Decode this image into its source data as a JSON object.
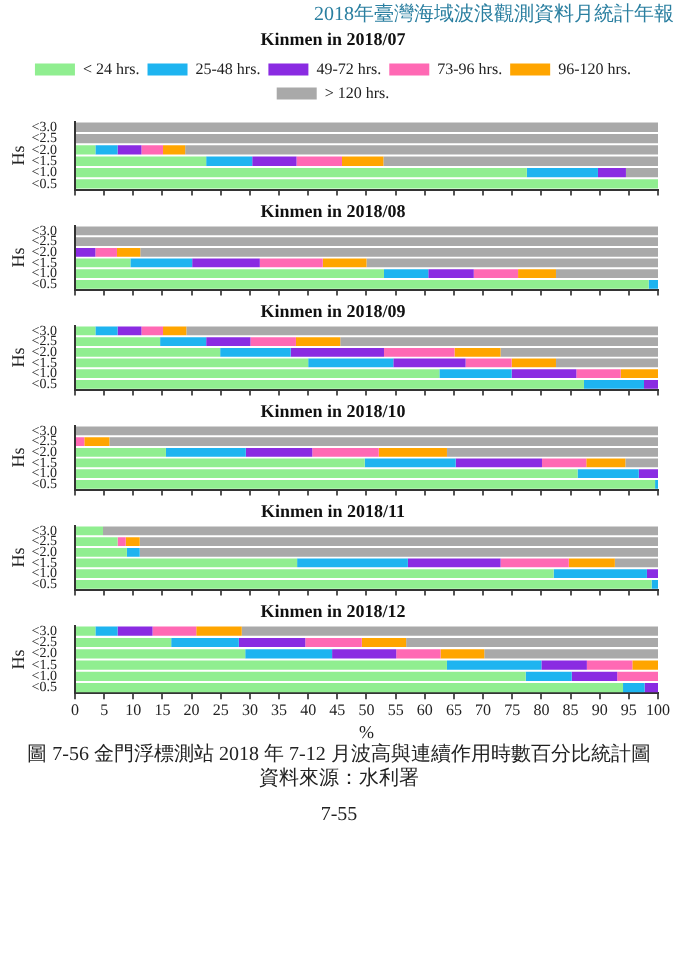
{
  "chart_data": [
    {
      "type": "bar",
      "orientation": "horizontal",
      "stacked": true,
      "title": "Kinmen in 2018/07",
      "ylabel": "Hs",
      "legend": "top",
      "tick_labels": "y",
      "annotations": [
        "2018年臺灣海域波浪觀測資料月統計年報"
      ],
      "categories": [
        "<3.0",
        "<2.5",
        "<2.0",
        "<1.5",
        "<1.0",
        "<0.5"
      ],
      "xlim": [
        0,
        100
      ],
      "xticks": [
        0,
        5,
        10,
        15,
        20,
        25,
        30,
        35,
        40,
        45,
        50,
        55,
        60,
        65,
        70,
        75,
        80,
        85,
        90,
        95,
        100
      ],
      "series": [
        {
          "name": "< 24 hrs.",
          "color": "#90ee90",
          "values": [
            0,
            0,
            3.5,
            22.5,
            77.5,
            100
          ]
        },
        {
          "name": "25-48 hrs.",
          "color": "#1eb4f0",
          "values": [
            0,
            0,
            3.8,
            7.9,
            12.2,
            0
          ]
        },
        {
          "name": "49-72 hrs.",
          "color": "#8a2be2",
          "values": [
            0,
            0,
            4.1,
            7.6,
            4.8,
            0
          ]
        },
        {
          "name": "73-96 hrs.",
          "color": "#ff69b4",
          "values": [
            0,
            0,
            3.7,
            7.8,
            0,
            0
          ]
        },
        {
          "name": "96-120 hrs.",
          "color": "#ffa500",
          "values": [
            0,
            0,
            3.8,
            7.1,
            0,
            0
          ]
        },
        {
          "name": "> 120 hrs.",
          "color": "#a9a9a9",
          "values": [
            100,
            100,
            81.1,
            47.1,
            5.5,
            0
          ]
        }
      ]
    },
    {
      "type": "bar",
      "orientation": "horizontal",
      "stacked": true,
      "title": "Kinmen in 2018/08",
      "ylabel": "Hs",
      "tick_labels": "y",
      "categories": [
        "<3.0",
        "<2.5",
        "<2.0",
        "<1.5",
        "<1.0",
        "<0.5"
      ],
      "xlim": [
        0,
        100
      ],
      "xticks": [
        0,
        5,
        10,
        15,
        20,
        25,
        30,
        35,
        40,
        45,
        50,
        55,
        60,
        65,
        70,
        75,
        80,
        85,
        90,
        95,
        100
      ],
      "series": [
        {
          "color": "#90ee90",
          "values": [
            0,
            0,
            0,
            9.5,
            53,
            98.4
          ]
        },
        {
          "color": "#1eb4f0",
          "values": [
            0,
            0,
            0,
            10.6,
            7.6,
            1.6
          ]
        },
        {
          "color": "#8a2be2",
          "values": [
            0,
            0,
            3.5,
            11.6,
            7.8,
            0
          ]
        },
        {
          "color": "#ff69b4",
          "values": [
            0,
            0,
            3.7,
            10.8,
            7.6,
            0
          ]
        },
        {
          "color": "#ffa500",
          "values": [
            0,
            0,
            4,
            7.5,
            6.5,
            0
          ]
        },
        {
          "color": "#a9a9a9",
          "values": [
            100,
            100,
            88.8,
            50,
            17.5,
            0
          ]
        }
      ]
    },
    {
      "type": "bar",
      "orientation": "horizontal",
      "stacked": true,
      "title": "Kinmen in 2018/09",
      "ylabel": "Hs",
      "tick_labels": "y",
      "categories": [
        "<3.0",
        "<2.5",
        "<2.0",
        "<1.5",
        "<1.0",
        "<0.5"
      ],
      "xlim": [
        0,
        100
      ],
      "xticks": [
        0,
        5,
        10,
        15,
        20,
        25,
        30,
        35,
        40,
        45,
        50,
        55,
        60,
        65,
        70,
        75,
        80,
        85,
        90,
        95,
        100
      ],
      "series": [
        {
          "color": "#90ee90",
          "values": [
            3.5,
            14.6,
            24.9,
            40,
            62.5,
            87.3
          ]
        },
        {
          "color": "#1eb4f0",
          "values": [
            3.8,
            7.9,
            12.1,
            14.6,
            12.4,
            10.3
          ]
        },
        {
          "color": "#8a2be2",
          "values": [
            4.1,
            7.6,
            16,
            12.4,
            11.1,
            2.4
          ]
        },
        {
          "color": "#ff69b4",
          "values": [
            3.7,
            7.8,
            12.1,
            7.9,
            7.6,
            0
          ]
        },
        {
          "color": "#ffa500",
          "values": [
            4,
            7.6,
            7.9,
            7.6,
            6.4,
            0
          ]
        },
        {
          "color": "#a9a9a9",
          "values": [
            80.9,
            54.5,
            27,
            17.5,
            0,
            0
          ]
        }
      ]
    },
    {
      "type": "bar",
      "orientation": "horizontal",
      "stacked": true,
      "title": "Kinmen in 2018/10",
      "ylabel": "Hs",
      "tick_labels": "y",
      "categories": [
        "<3.0",
        "<2.5",
        "<2.0",
        "<1.5",
        "<1.0",
        "<0.5"
      ],
      "xlim": [
        0,
        100
      ],
      "xticks": [
        0,
        5,
        10,
        15,
        20,
        25,
        30,
        35,
        40,
        45,
        50,
        55,
        60,
        65,
        70,
        75,
        80,
        85,
        90,
        95,
        100
      ],
      "series": [
        {
          "color": "#90ee90",
          "values": [
            0,
            0,
            15.6,
            49.7,
            86.2,
            99.5
          ]
        },
        {
          "color": "#1eb4f0",
          "values": [
            0,
            0,
            13.7,
            15.6,
            10.5,
            0.5
          ]
        },
        {
          "color": "#8a2be2",
          "values": [
            0,
            0,
            11.4,
            14.8,
            3.3,
            0
          ]
        },
        {
          "color": "#ff69b4",
          "values": [
            0,
            1.6,
            11.4,
            7.6,
            0,
            0
          ]
        },
        {
          "color": "#ffa500",
          "values": [
            0,
            4.3,
            11.7,
            6.7,
            0,
            0
          ]
        },
        {
          "color": "#a9a9a9",
          "values": [
            100,
            94.1,
            36.2,
            5.6,
            0,
            0
          ]
        }
      ]
    },
    {
      "type": "bar",
      "orientation": "horizontal",
      "stacked": true,
      "title": "Kinmen in 2018/11",
      "ylabel": "Hs",
      "tick_labels": "y",
      "categories": [
        "<3.0",
        "<2.5",
        "<2.0",
        "<1.5",
        "<1.0",
        "<0.5"
      ],
      "xlim": [
        0,
        100
      ],
      "xticks": [
        0,
        5,
        10,
        15,
        20,
        25,
        30,
        35,
        40,
        45,
        50,
        55,
        60,
        65,
        70,
        75,
        80,
        85,
        90,
        95,
        100
      ],
      "series": [
        {
          "color": "#90ee90",
          "values": [
            4.8,
            7.3,
            8.9,
            38.1,
            82.1,
            98.9
          ]
        },
        {
          "color": "#1eb4f0",
          "values": [
            0,
            0,
            2.2,
            19,
            16,
            1.1
          ]
        },
        {
          "color": "#8a2be2",
          "values": [
            0,
            0,
            0,
            15.9,
            1.9,
            0
          ]
        },
        {
          "color": "#ff69b4",
          "values": [
            0,
            1.4,
            0,
            11.7,
            0,
            0
          ]
        },
        {
          "color": "#ffa500",
          "values": [
            0,
            2.4,
            0,
            7.9,
            0,
            0
          ]
        },
        {
          "color": "#a9a9a9",
          "values": [
            95.2,
            88.9,
            88.9,
            7.4,
            0,
            0
          ]
        }
      ]
    },
    {
      "type": "bar",
      "orientation": "horizontal",
      "stacked": true,
      "title": "Kinmen in 2018/12",
      "ylabel": "Hs",
      "xlabel": "%",
      "annotations": [
        "圖 7-56 金門浮標測站 2018 年 7-12 月波高與連續作用時數百分比統計圖",
        "資料來源：水利署",
        "7-55"
      ],
      "categories": [
        "<3.0",
        "<2.5",
        "<2.0",
        "<1.5",
        "<1.0",
        "<0.5"
      ],
      "xlim": [
        0,
        100
      ],
      "xticks": [
        0,
        5,
        10,
        15,
        20,
        25,
        30,
        35,
        40,
        45,
        50,
        55,
        60,
        65,
        70,
        75,
        80,
        85,
        90,
        95,
        100
      ],
      "series": [
        {
          "color": "#90ee90",
          "values": [
            3.5,
            16.5,
            29.2,
            63.8,
            77.3,
            94
          ]
        },
        {
          "color": "#1eb4f0",
          "values": [
            3.8,
            11.6,
            14.9,
            16.2,
            7.9,
            3.7
          ]
        },
        {
          "color": "#8a2be2",
          "values": [
            6,
            11.4,
            11,
            7.8,
            7.8,
            2.3
          ]
        },
        {
          "color": "#ff69b4",
          "values": [
            7.5,
            9.7,
            7.6,
            7.8,
            7,
            0
          ]
        },
        {
          "color": "#ffa500",
          "values": [
            7.8,
            7.6,
            7.5,
            4.4,
            0,
            0
          ]
        },
        {
          "color": "#a9a9a9",
          "values": [
            71.4,
            43.2,
            29.8,
            0,
            0,
            0
          ]
        }
      ]
    }
  ]
}
